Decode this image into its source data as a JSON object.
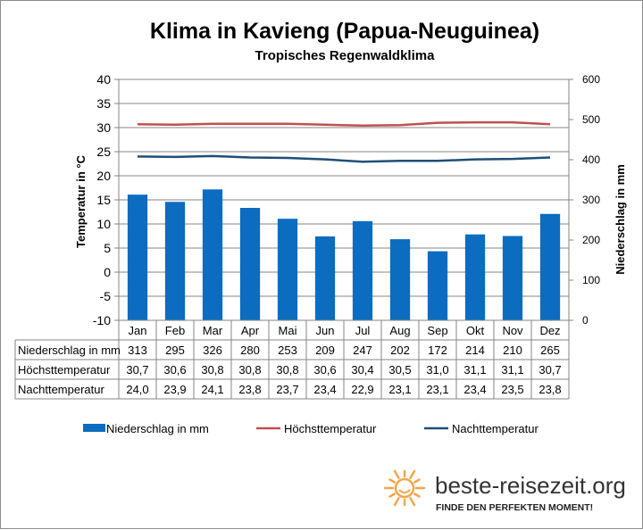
{
  "chart_data": {
    "type": "bar",
    "title": "Klima in Kavieng (Papua-Neuguinea)",
    "subtitle": "Tropisches Regenwaldklima",
    "categories": [
      "Jan",
      "Feb",
      "Mar",
      "Apr",
      "Mai",
      "Jun",
      "Jul",
      "Aug",
      "Sep",
      "Okt",
      "Nov",
      "Dez"
    ],
    "y_left": {
      "label": "Temperatur in °C",
      "range": [
        -10,
        40
      ],
      "ticks": [
        -10,
        -5,
        0,
        5,
        10,
        15,
        20,
        25,
        30,
        35,
        40
      ]
    },
    "y_right": {
      "label": "Niederschlag in mm",
      "range": [
        0,
        600
      ],
      "ticks": [
        0,
        100,
        200,
        300,
        400,
        500,
        600
      ]
    },
    "grid": true,
    "series": [
      {
        "name": "Niederschlag in mm",
        "type": "bar",
        "axis": "right",
        "color": "#0b6cc0",
        "values": [
          313,
          295,
          326,
          280,
          253,
          209,
          247,
          202,
          172,
          214,
          210,
          265
        ],
        "labels": [
          "313",
          "295",
          "326",
          "280",
          "253",
          "209",
          "247",
          "202",
          "172",
          "214",
          "210",
          "265"
        ]
      },
      {
        "name": "Höchsttemperatur",
        "type": "line",
        "axis": "left",
        "color": "#c0504d",
        "values": [
          30.7,
          30.6,
          30.8,
          30.8,
          30.8,
          30.6,
          30.4,
          30.5,
          31.0,
          31.1,
          31.1,
          30.7
        ],
        "labels": [
          "30,7",
          "30,6",
          "30,8",
          "30,8",
          "30,8",
          "30,6",
          "30,4",
          "30,5",
          "31,0",
          "31,1",
          "31,1",
          "30,7"
        ]
      },
      {
        "name": "Nachttemperatur",
        "type": "line",
        "axis": "left",
        "color": "#1f4e79",
        "values": [
          24.0,
          23.9,
          24.1,
          23.8,
          23.7,
          23.4,
          22.9,
          23.1,
          23.1,
          23.4,
          23.5,
          23.8
        ],
        "labels": [
          "24,0",
          "23,9",
          "24,1",
          "23,8",
          "23,7",
          "23,4",
          "22,9",
          "23,1",
          "23,1",
          "23,4",
          "23,5",
          "23,8"
        ]
      }
    ],
    "legend_position": "bottom"
  },
  "branding": {
    "site": "beste-reisezeit.org",
    "slogan": "FINDE DEN PERFEKTEN MOMENT!",
    "sun_color": "#f4a64b"
  }
}
